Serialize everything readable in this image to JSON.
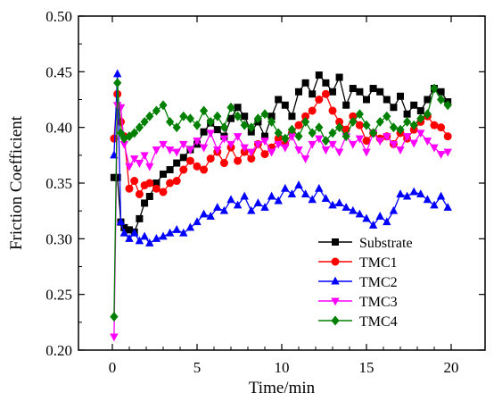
{
  "chart_data": {
    "type": "line",
    "title": "",
    "xlabel": "Time/min",
    "ylabel": "Friction Coefficient",
    "xlim": [
      -2,
      22
    ],
    "ylim": [
      0.2,
      0.5
    ],
    "xticks": [
      "0",
      "5",
      "10",
      "15",
      "20"
    ],
    "yticks": [
      "0.20",
      "0.25",
      "0.30",
      "0.35",
      "0.40",
      "0.45",
      "0.50"
    ],
    "grid": false,
    "legend_position": "bottom-right",
    "series": [
      {
        "name": "Substrate",
        "color": "#000000",
        "marker": "square",
        "x": [
          0.1,
          0.3,
          0.5,
          0.7,
          1.0,
          1.3,
          1.6,
          1.9,
          2.2,
          2.6,
          3.0,
          3.4,
          3.8,
          4.2,
          4.6,
          5.0,
          5.4,
          5.8,
          6.2,
          6.6,
          7.0,
          7.4,
          7.8,
          8.2,
          8.6,
          9.0,
          9.4,
          9.8,
          10.2,
          10.6,
          11.0,
          11.4,
          11.8,
          12.2,
          12.6,
          13.0,
          13.4,
          13.8,
          14.2,
          14.6,
          15.0,
          15.4,
          15.8,
          16.2,
          16.6,
          17.0,
          17.4,
          17.8,
          18.2,
          18.6,
          19.0,
          19.4,
          19.8
        ],
        "y": [
          0.355,
          0.355,
          0.315,
          0.31,
          0.308,
          0.306,
          0.318,
          0.332,
          0.338,
          0.35,
          0.358,
          0.362,
          0.368,
          0.373,
          0.38,
          0.385,
          0.396,
          0.404,
          0.398,
          0.392,
          0.408,
          0.418,
          0.41,
          0.396,
          0.405,
          0.392,
          0.41,
          0.425,
          0.42,
          0.41,
          0.432,
          0.44,
          0.43,
          0.447,
          0.44,
          0.432,
          0.445,
          0.42,
          0.435,
          0.432,
          0.425,
          0.435,
          0.432,
          0.425,
          0.418,
          0.428,
          0.412,
          0.42,
          0.415,
          0.425,
          0.435,
          0.432,
          0.423
        ]
      },
      {
        "name": "TMC1",
        "color": "#ff0000",
        "marker": "circle",
        "x": [
          0.1,
          0.3,
          0.5,
          0.7,
          1.0,
          1.3,
          1.6,
          1.9,
          2.2,
          2.6,
          3.0,
          3.4,
          3.8,
          4.2,
          4.6,
          5.0,
          5.4,
          5.8,
          6.2,
          6.6,
          7.0,
          7.4,
          7.8,
          8.2,
          8.6,
          9.0,
          9.4,
          9.8,
          10.2,
          10.6,
          11.0,
          11.4,
          11.8,
          12.2,
          12.6,
          13.0,
          13.4,
          13.8,
          14.2,
          14.6,
          15.0,
          15.4,
          15.8,
          16.2,
          16.6,
          17.0,
          17.4,
          17.8,
          18.2,
          18.6,
          19.0,
          19.4,
          19.8
        ],
        "y": [
          0.39,
          0.43,
          0.405,
          0.392,
          0.345,
          0.352,
          0.34,
          0.348,
          0.35,
          0.345,
          0.342,
          0.35,
          0.352,
          0.362,
          0.37,
          0.365,
          0.362,
          0.372,
          0.378,
          0.368,
          0.382,
          0.37,
          0.378,
          0.372,
          0.385,
          0.376,
          0.382,
          0.39,
          0.385,
          0.395,
          0.402,
          0.41,
          0.415,
          0.425,
          0.43,
          0.415,
          0.405,
          0.398,
          0.41,
          0.402,
          0.388,
          0.395,
          0.39,
          0.392,
          0.385,
          0.395,
          0.39,
          0.398,
          0.405,
          0.41,
          0.402,
          0.4,
          0.392
        ]
      },
      {
        "name": "TMC2",
        "color": "#0000ff",
        "marker": "triangle-up",
        "x": [
          0.1,
          0.3,
          0.5,
          0.7,
          1.0,
          1.3,
          1.6,
          1.9,
          2.2,
          2.6,
          3.0,
          3.4,
          3.8,
          4.2,
          4.6,
          5.0,
          5.4,
          5.8,
          6.2,
          6.6,
          7.0,
          7.4,
          7.8,
          8.2,
          8.6,
          9.0,
          9.4,
          9.8,
          10.2,
          10.6,
          11.0,
          11.4,
          11.8,
          12.2,
          12.6,
          13.0,
          13.4,
          13.8,
          14.2,
          14.6,
          15.0,
          15.4,
          15.8,
          16.2,
          16.6,
          17.0,
          17.4,
          17.8,
          18.2,
          18.6,
          19.0,
          19.4,
          19.8
        ],
        "y": [
          0.375,
          0.448,
          0.315,
          0.305,
          0.3,
          0.305,
          0.298,
          0.302,
          0.296,
          0.3,
          0.302,
          0.305,
          0.308,
          0.305,
          0.31,
          0.315,
          0.322,
          0.32,
          0.328,
          0.325,
          0.335,
          0.33,
          0.338,
          0.325,
          0.332,
          0.328,
          0.338,
          0.334,
          0.345,
          0.34,
          0.348,
          0.34,
          0.335,
          0.345,
          0.336,
          0.33,
          0.332,
          0.328,
          0.325,
          0.322,
          0.318,
          0.312,
          0.32,
          0.315,
          0.325,
          0.34,
          0.338,
          0.342,
          0.34,
          0.335,
          0.33,
          0.338,
          0.328
        ]
      },
      {
        "name": "TMC3",
        "color": "#ff00ff",
        "marker": "triangle-down",
        "x": [
          0.1,
          0.3,
          0.5,
          0.7,
          1.0,
          1.3,
          1.6,
          1.9,
          2.2,
          2.6,
          3.0,
          3.4,
          3.8,
          4.2,
          4.6,
          5.0,
          5.4,
          5.8,
          6.2,
          6.6,
          7.0,
          7.4,
          7.8,
          8.2,
          8.6,
          9.0,
          9.4,
          9.8,
          10.2,
          10.6,
          11.0,
          11.4,
          11.8,
          12.2,
          12.6,
          13.0,
          13.4,
          13.8,
          14.2,
          14.6,
          15.0,
          15.4,
          15.8,
          16.2,
          16.6,
          17.0,
          17.4,
          17.8,
          18.2,
          18.6,
          19.0,
          19.4,
          19.8
        ],
        "y": [
          0.212,
          0.42,
          0.418,
          0.385,
          0.365,
          0.372,
          0.368,
          0.375,
          0.365,
          0.38,
          0.385,
          0.38,
          0.378,
          0.385,
          0.38,
          0.388,
          0.382,
          0.395,
          0.38,
          0.39,
          0.385,
          0.392,
          0.382,
          0.378,
          0.385,
          0.388,
          0.378,
          0.385,
          0.382,
          0.392,
          0.38,
          0.372,
          0.385,
          0.39,
          0.38,
          0.385,
          0.378,
          0.392,
          0.385,
          0.39,
          0.378,
          0.395,
          0.388,
          0.392,
          0.385,
          0.38,
          0.392,
          0.386,
          0.395,
          0.388,
          0.382,
          0.376,
          0.378
        ]
      },
      {
        "name": "TMC4",
        "color": "#008000",
        "marker": "diamond",
        "x": [
          0.1,
          0.3,
          0.5,
          0.7,
          1.0,
          1.3,
          1.6,
          1.9,
          2.2,
          2.6,
          3.0,
          3.4,
          3.8,
          4.2,
          4.6,
          5.0,
          5.4,
          5.8,
          6.2,
          6.6,
          7.0,
          7.4,
          7.8,
          8.2,
          8.6,
          9.0,
          9.4,
          9.8,
          10.2,
          10.6,
          11.0,
          11.4,
          11.8,
          12.2,
          12.6,
          13.0,
          13.4,
          13.8,
          14.2,
          14.6,
          15.0,
          15.4,
          15.8,
          16.2,
          16.6,
          17.0,
          17.4,
          17.8,
          18.2,
          18.6,
          19.0,
          19.4,
          19.8
        ],
        "y": [
          0.23,
          0.44,
          0.395,
          0.39,
          0.392,
          0.395,
          0.4,
          0.405,
          0.41,
          0.415,
          0.42,
          0.405,
          0.4,
          0.41,
          0.408,
          0.402,
          0.415,
          0.405,
          0.41,
          0.4,
          0.418,
          0.41,
          0.402,
          0.4,
          0.408,
          0.412,
          0.405,
          0.395,
          0.39,
          0.398,
          0.392,
          0.405,
          0.395,
          0.4,
          0.388,
          0.395,
          0.4,
          0.392,
          0.405,
          0.412,
          0.402,
          0.395,
          0.405,
          0.41,
          0.4,
          0.398,
          0.405,
          0.402,
          0.408,
          0.412,
          0.435,
          0.425,
          0.42
        ]
      }
    ]
  }
}
